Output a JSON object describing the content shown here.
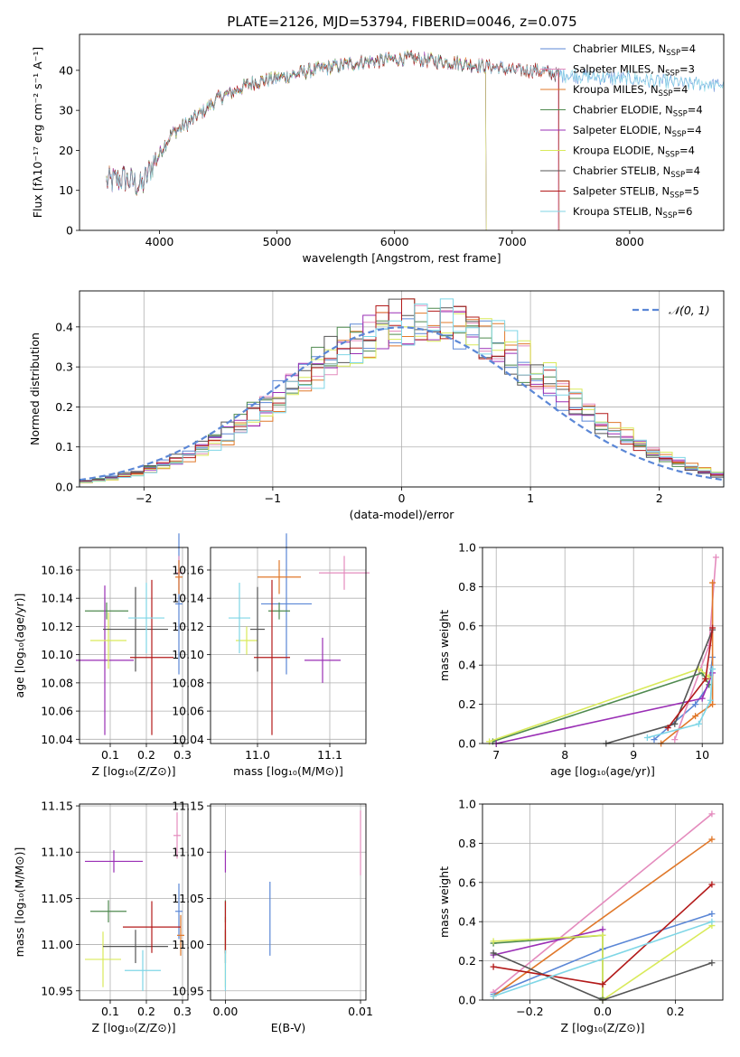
{
  "figure": {
    "title": "PLATE=2126, MJD=53794, FIBERID=0046, z=0.075"
  },
  "colors": {
    "Chabrier MILES": "#5b87d6",
    "Salpeter MILES": "#e48bbd",
    "Kroupa MILES": "#e0782a",
    "Chabrier ELODIE": "#4f8a4f",
    "Salpeter ELODIE": "#9a2fb5",
    "Kroupa ELODIE": "#d9ea5a",
    "Chabrier STELIB": "#555555",
    "Salpeter STELIB": "#b31a1a",
    "Kroupa STELIB": "#7fd6e6"
  },
  "chart_data": [
    {
      "id": "spectrum",
      "type": "line",
      "xlabel": "wavelength [Angstrom, rest frame]",
      "ylabel": "Flux [fλ10⁻¹⁷ erg cm⁻² s⁻¹ A⁻¹]",
      "xlim": [
        3320,
        8800
      ],
      "ylim": [
        0,
        49
      ],
      "xticks": [
        4000,
        5000,
        6000,
        7000,
        8000
      ],
      "yticks": [
        0,
        10,
        20,
        30,
        40
      ],
      "legend_position": "top-right",
      "series": [
        {
          "name": "Chabrier MILES, N_SSP=4",
          "label": "Chabrier MILES, N",
          "n": "4"
        },
        {
          "name": "Salpeter MILES, N_SSP=3",
          "label": "Salpeter MILES, N",
          "n": "3"
        },
        {
          "name": "Kroupa MILES, N_SSP=4",
          "label": "Kroupa MILES, N",
          "n": "4"
        },
        {
          "name": "Chabrier ELODIE, N_SSP=4",
          "label": "Chabrier ELODIE, N",
          "n": "4"
        },
        {
          "name": "Salpeter ELODIE, N_SSP=4",
          "label": "Salpeter ELODIE, N",
          "n": "4"
        },
        {
          "name": "Kroupa ELODIE, N_SSP=4",
          "label": "Kroupa ELODIE, N",
          "n": "4"
        },
        {
          "name": "Chabrier STELIB, N_SSP=4",
          "label": "Chabrier STELIB, N",
          "n": "4"
        },
        {
          "name": "Salpeter STELIB, N_SSP=5",
          "label": "Salpeter STELIB, N",
          "n": "5"
        },
        {
          "name": "Kroupa STELIB, N_SSP=6",
          "label": "Kroupa STELIB, N",
          "n": "6"
        }
      ],
      "continuum": {
        "x": [
          3550,
          3700,
          3850,
          3950,
          4100,
          4300,
          4500,
          4800,
          5000,
          5300,
          5700,
          6100,
          6500,
          6800,
          7000,
          7200,
          7400
        ],
        "y": [
          12,
          13,
          11,
          17,
          24,
          28,
          33,
          37,
          38,
          40,
          42,
          43,
          42,
          41,
          40,
          40,
          39
        ]
      },
      "series_ranges": [
        [
          3550,
          8800
        ],
        [
          3550,
          7390
        ],
        [
          3550,
          7400
        ],
        [
          3550,
          6780
        ],
        [
          3550,
          6780
        ],
        [
          3920,
          6780
        ],
        [
          3550,
          7400
        ],
        [
          3550,
          7400
        ],
        [
          3550,
          8800
        ]
      ]
    },
    {
      "id": "residual-histogram",
      "type": "histogram",
      "xlabel": "(data-model)/error",
      "ylabel": "Normed distribution",
      "xlim": [
        -2.5,
        2.5
      ],
      "ylim": [
        0,
        0.49
      ],
      "xticks": [
        -2,
        -1,
        0,
        1,
        2
      ],
      "yticks": [
        0.0,
        0.1,
        0.2,
        0.3,
        0.4
      ],
      "legend_position": "top-right",
      "reference_curve": {
        "name": "𝒩(0, 1)",
        "mean": 0,
        "sigma": 1,
        "style": "dashed"
      },
      "grid": true
    },
    {
      "id": "age-vs-Z",
      "type": "scatter",
      "xlabel": "Z [log₁₀(Z/Z⊙)]",
      "ylabel": "age  [log₁₀(age/yr)]",
      "xlim": [
        0.015,
        0.315
      ],
      "ylim": [
        10.037,
        10.176
      ],
      "xticks": [
        0.1,
        0.2,
        0.3
      ],
      "yticks": [
        10.04,
        10.06,
        10.08,
        10.1,
        10.12,
        10.14,
        10.16
      ],
      "grid": true,
      "points": [
        {
          "series": "Chabrier MILES",
          "x": 0.29,
          "xerr": 0.01,
          "y": 10.136,
          "yerr": 0.05
        },
        {
          "series": "Salpeter MILES",
          "x": 0.29,
          "xerr": 0.01,
          "y": 10.158,
          "yerr": 0.012
        },
        {
          "series": "Kroupa MILES",
          "x": 0.29,
          "xerr": 0.01,
          "y": 10.155,
          "yerr": 0.012
        },
        {
          "series": "Chabrier ELODIE",
          "x": 0.09,
          "xerr": 0.06,
          "y": 10.131,
          "yerr": 0.006
        },
        {
          "series": "Salpeter ELODIE",
          "x": 0.085,
          "xerr": 0.08,
          "y": 10.096,
          "yerr": 0.053
        },
        {
          "series": "Kroupa ELODIE",
          "x": 0.095,
          "xerr": 0.05,
          "y": 10.11,
          "yerr": 0.02
        },
        {
          "series": "Chabrier STELIB",
          "x": 0.17,
          "xerr": 0.09,
          "y": 10.118,
          "yerr": 0.03
        },
        {
          "series": "Salpeter STELIB",
          "x": 0.215,
          "xerr": 0.06,
          "y": 10.098,
          "yerr": 0.055
        },
        {
          "series": "Kroupa STELIB",
          "x": 0.2,
          "xerr": 0.05,
          "y": 10.126,
          "yerr": 0.025
        }
      ]
    },
    {
      "id": "age-vs-mass",
      "type": "scatter",
      "xlabel": "mass [log₁₀(M/M⊙)]",
      "ylabel": "",
      "xlim": [
        10.935,
        11.15
      ],
      "ylim": [
        10.037,
        10.176
      ],
      "xticks": [
        11.0,
        11.1
      ],
      "yticks": [
        10.04,
        10.06,
        10.08,
        10.1,
        10.12,
        10.14,
        10.16
      ],
      "grid": true,
      "points": [
        {
          "series": "Chabrier MILES",
          "x": 11.04,
          "xerr": 0.035,
          "y": 10.136,
          "yerr": 0.05
        },
        {
          "series": "Salpeter MILES",
          "x": 11.12,
          "xerr": 0.035,
          "y": 10.158,
          "yerr": 0.012
        },
        {
          "series": "Kroupa MILES",
          "x": 11.03,
          "xerr": 0.03,
          "y": 10.155,
          "yerr": 0.012
        },
        {
          "series": "Chabrier ELODIE",
          "x": 11.03,
          "xerr": 0.015,
          "y": 10.131,
          "yerr": 0.006
        },
        {
          "series": "Salpeter ELODIE",
          "x": 11.09,
          "xerr": 0.025,
          "y": 10.096,
          "yerr": 0.016
        },
        {
          "series": "Kroupa ELODIE",
          "x": 10.985,
          "xerr": 0.015,
          "y": 10.11,
          "yerr": 0.01
        },
        {
          "series": "Chabrier STELIB",
          "x": 11.0,
          "xerr": 0.01,
          "y": 10.118,
          "yerr": 0.03
        },
        {
          "series": "Salpeter STELIB",
          "x": 11.02,
          "xerr": 0.025,
          "y": 10.098,
          "yerr": 0.055
        },
        {
          "series": "Kroupa STELIB",
          "x": 10.975,
          "xerr": 0.015,
          "y": 10.126,
          "yerr": 0.025
        }
      ]
    },
    {
      "id": "mass-weight-vs-age",
      "type": "line",
      "xlabel": "age  [log₁₀(age/yr)]",
      "ylabel": "mass weight",
      "xlim": [
        6.8,
        10.3
      ],
      "ylim": [
        0,
        1
      ],
      "xticks": [
        7,
        8,
        9,
        10
      ],
      "yticks": [
        0.0,
        0.2,
        0.4,
        0.6,
        0.8,
        1.0
      ],
      "grid": true,
      "series": [
        {
          "name": "Chabrier MILES",
          "x": [
            9.3,
            9.9,
            10.1,
            10.15
          ],
          "y": [
            0.02,
            0.2,
            0.3,
            0.44
          ]
        },
        {
          "name": "Salpeter MILES",
          "x": [
            9.6,
            10.1,
            10.2
          ],
          "y": [
            0.02,
            0.5,
            0.95
          ]
        },
        {
          "name": "Kroupa MILES",
          "x": [
            9.4,
            9.9,
            10.15,
            10.15
          ],
          "y": [
            0.0,
            0.14,
            0.2,
            0.82
          ]
        },
        {
          "name": "Chabrier ELODIE",
          "x": [
            6.95,
            10.0,
            10.1
          ],
          "y": [
            0.01,
            0.36,
            0.3
          ]
        },
        {
          "name": "Salpeter ELODIE",
          "x": [
            7.0,
            10.0,
            10.15
          ],
          "y": [
            0.0,
            0.23,
            0.36
          ]
        },
        {
          "name": "Kroupa ELODIE",
          "x": [
            6.9,
            9.95,
            10.1
          ],
          "y": [
            0.01,
            0.38,
            0.34
          ]
        },
        {
          "name": "Chabrier STELIB",
          "x": [
            8.6,
            9.6,
            10.15
          ],
          "y": [
            0.0,
            0.1,
            0.58
          ]
        },
        {
          "name": "Salpeter STELIB",
          "x": [
            9.5,
            10.05,
            10.15
          ],
          "y": [
            0.08,
            0.33,
            0.59
          ]
        },
        {
          "name": "Kroupa STELIB",
          "x": [
            9.2,
            9.95,
            10.12,
            10.15
          ],
          "y": [
            0.03,
            0.1,
            0.22,
            0.38
          ]
        }
      ]
    },
    {
      "id": "mass-vs-Z",
      "type": "scatter",
      "xlabel": "Z [log₁₀(Z/Z⊙)]",
      "ylabel": "mass [log₁₀(M/M⊙)]",
      "xlim": [
        0.015,
        0.315
      ],
      "ylim": [
        10.94,
        11.152
      ],
      "xticks": [
        0.1,
        0.2,
        0.3
      ],
      "yticks": [
        10.95,
        11.0,
        11.05,
        11.1,
        11.15
      ],
      "grid": true,
      "points": [
        {
          "series": "Chabrier MILES",
          "x": 0.29,
          "xerr": 0.01,
          "y": 11.036,
          "yerr": 0.03
        },
        {
          "series": "Salpeter MILES",
          "x": 0.285,
          "xerr": 0.01,
          "y": 11.118,
          "yerr": 0.025
        },
        {
          "series": "Kroupa MILES",
          "x": 0.295,
          "xerr": 0.01,
          "y": 11.01,
          "yerr": 0.022
        },
        {
          "series": "Chabrier ELODIE",
          "x": 0.095,
          "xerr": 0.05,
          "y": 11.036,
          "yerr": 0.012
        },
        {
          "series": "Salpeter ELODIE",
          "x": 0.11,
          "xerr": 0.08,
          "y": 11.09,
          "yerr": 0.012
        },
        {
          "series": "Kroupa ELODIE",
          "x": 0.08,
          "xerr": 0.05,
          "y": 10.984,
          "yerr": 0.03
        },
        {
          "series": "Chabrier STELIB",
          "x": 0.17,
          "xerr": 0.09,
          "y": 10.998,
          "yerr": 0.018
        },
        {
          "series": "Salpeter STELIB",
          "x": 0.215,
          "xerr": 0.08,
          "y": 11.019,
          "yerr": 0.028
        },
        {
          "series": "Kroupa STELIB",
          "x": 0.19,
          "xerr": 0.05,
          "y": 10.972,
          "yerr": 0.022
        }
      ]
    },
    {
      "id": "mass-vs-ebv",
      "type": "scatter",
      "xlabel": "E(B-V)",
      "ylabel": "",
      "xlim": [
        -0.0011,
        0.0104
      ],
      "ylim": [
        10.94,
        11.152
      ],
      "xticks": [
        0.0,
        0.01
      ],
      "yticks": [
        10.95,
        11.0,
        11.05,
        11.1,
        11.15
      ],
      "grid": true,
      "points": [
        {
          "series": "Chabrier MILES",
          "x": 0.0033,
          "xerr": 0,
          "y": 11.028,
          "yerr": 0.04
        },
        {
          "series": "Salpeter MILES",
          "x": 0.01,
          "xerr": 0,
          "y": 11.11,
          "yerr": 0.035
        },
        {
          "series": "Kroupa MILES",
          "x": 0.0,
          "xerr": 0,
          "y": 11.01,
          "yerr": 0.02
        },
        {
          "series": "Chabrier ELODIE",
          "x": 0.0,
          "xerr": 0,
          "y": 11.036,
          "yerr": 0.012
        },
        {
          "series": "Salpeter ELODIE",
          "x": 0.0,
          "xerr": 0,
          "y": 11.09,
          "yerr": 0.012
        },
        {
          "series": "Kroupa ELODIE",
          "x": 0.0,
          "xerr": 0,
          "y": 10.984,
          "yerr": 0.03
        },
        {
          "series": "Chabrier STELIB",
          "x": 0.0,
          "xerr": 0,
          "y": 10.998,
          "yerr": 0.018
        },
        {
          "series": "Salpeter STELIB",
          "x": 0.0,
          "xerr": 0,
          "y": 11.019,
          "yerr": 0.028
        },
        {
          "series": "Kroupa STELIB",
          "x": 0.0,
          "xerr": 0,
          "y": 10.972,
          "yerr": 0.022
        }
      ]
    },
    {
      "id": "mass-weight-vs-Z",
      "type": "line",
      "xlabel": "Z [log₁₀(Z/Z⊙)]",
      "ylabel": "mass weight",
      "xlim": [
        -0.33,
        0.33
      ],
      "ylim": [
        0,
        1
      ],
      "xticks": [
        -0.2,
        0.0,
        0.2
      ],
      "yticks": [
        0.0,
        0.2,
        0.4,
        0.6,
        0.8,
        1.0
      ],
      "grid": true,
      "series": [
        {
          "name": "Chabrier MILES",
          "x": [
            -0.3,
            0.0,
            0.3
          ],
          "y": [
            0.03,
            0.26,
            0.44
          ]
        },
        {
          "name": "Salpeter MILES",
          "x": [
            -0.3,
            0.3
          ],
          "y": [
            0.04,
            0.95
          ]
        },
        {
          "name": "Kroupa MILES",
          "x": [
            -0.3,
            0.3
          ],
          "y": [
            0.02,
            0.82
          ]
        },
        {
          "name": "Chabrier ELODIE",
          "x": [
            -0.3,
            0.0,
            0.0
          ],
          "y": [
            0.29,
            0.33,
            0.01
          ]
        },
        {
          "name": "Salpeter ELODIE",
          "x": [
            -0.3,
            0.0
          ],
          "y": [
            0.23,
            0.36
          ]
        },
        {
          "name": "Kroupa ELODIE",
          "x": [
            -0.3,
            0.0,
            0.0,
            0.3
          ],
          "y": [
            0.3,
            0.33,
            0.0,
            0.38
          ]
        },
        {
          "name": "Chabrier STELIB",
          "x": [
            -0.3,
            0.0,
            0.3
          ],
          "y": [
            0.24,
            0.0,
            0.19
          ]
        },
        {
          "name": "Salpeter STELIB",
          "x": [
            -0.3,
            0.0,
            0.3
          ],
          "y": [
            0.17,
            0.08,
            0.59
          ]
        },
        {
          "name": "Kroupa STELIB",
          "x": [
            -0.3,
            0.3
          ],
          "y": [
            0.02,
            0.4
          ]
        }
      ]
    }
  ]
}
